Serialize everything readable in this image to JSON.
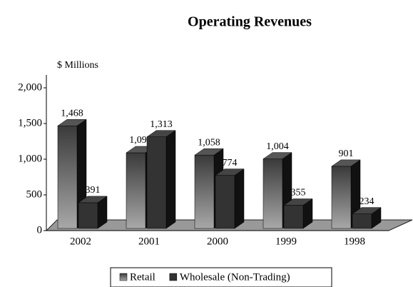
{
  "chart_data": {
    "type": "bar3d",
    "title": "Operating Revenues",
    "y_label": "$ Millions",
    "categories": [
      "2002",
      "2001",
      "2000",
      "1999",
      "1998"
    ],
    "series": [
      {
        "name": "Retail",
        "color": "#777777",
        "values": [
          1468,
          1090,
          1058,
          1004,
          901
        ],
        "value_labels": [
          "1,468",
          "1,090",
          "1,058",
          "1,004",
          "901"
        ]
      },
      {
        "name": "Wholesale (Non-Trading)",
        "color": "#333333",
        "values": [
          391,
          1313,
          774,
          355,
          234
        ],
        "value_labels": [
          "391",
          "1,313",
          "774",
          "355",
          "234"
        ]
      }
    ],
    "ylim": [
      0,
      2000
    ],
    "yticks": [
      0,
      500,
      {
        "value": 1000,
        "label": "1,000"
      },
      {
        "value": 1500,
        "label": "1,500"
      },
      {
        "value": 2000,
        "label": "2,000"
      }
    ],
    "legend": "bottom"
  }
}
